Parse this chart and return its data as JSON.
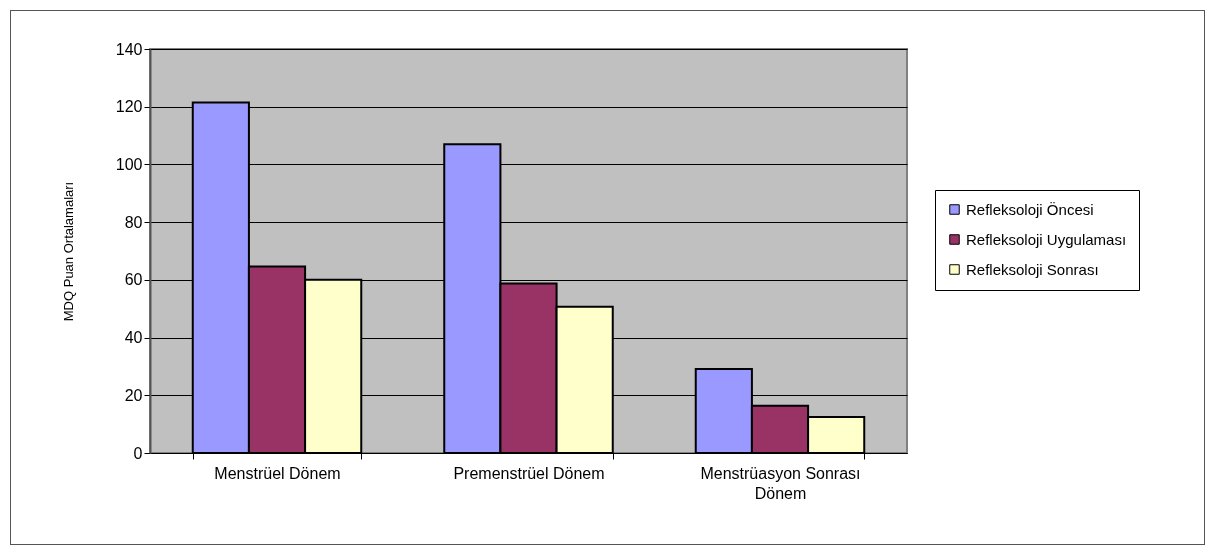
{
  "chart_data": {
    "type": "bar",
    "ylabel": "MDQ Puan Ortalamaları",
    "categories": [
      "Menstrüel Dönem",
      "Premenstrüel Dönem",
      "Menstrüasyon Sonrası Dönem"
    ],
    "series": [
      {
        "name": "Refleksoloji Öncesi",
        "color": "#9999ff",
        "values": [
          121.5,
          107,
          29.1
        ]
      },
      {
        "name": "Refleksoloji Uygulaması",
        "color": "#993366",
        "values": [
          64.6,
          58.7,
          16.4
        ]
      },
      {
        "name": "Refleksoloji Sonrası",
        "color": "#ffffcc",
        "values": [
          60,
          50.7,
          12.5
        ]
      }
    ],
    "ylim": [
      0,
      140
    ],
    "yticks": [
      0,
      20,
      40,
      60,
      80,
      100,
      120,
      140
    ],
    "grid": "y",
    "legend": "right"
  }
}
